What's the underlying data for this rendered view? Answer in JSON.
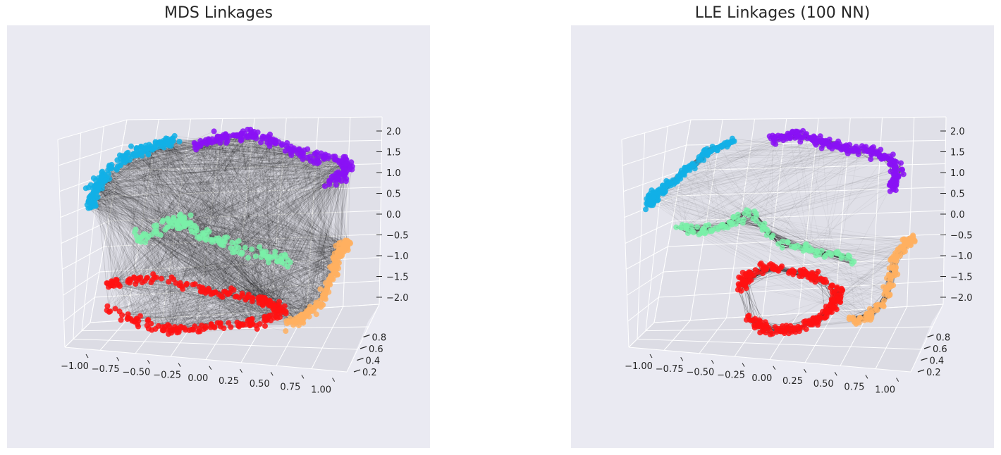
{
  "colors": {
    "background": "#eaeaf2",
    "pane_left": "#e4e4ec",
    "pane_right": "#e0e0e8",
    "pane_floor": "#dcdce4",
    "grid": "#ffffff",
    "link": "#000000",
    "red": "#ff1212",
    "orange": "#ffb060",
    "green": "#7af0a8",
    "blue": "#12b0e6",
    "purple": "#8a12f5"
  },
  "chart_data": [
    {
      "type": "scatter",
      "projection": "3d",
      "title": "MDS Linkages",
      "grid": true,
      "link_style": "dense",
      "xlim": [
        -1.0,
        1.0
      ],
      "ylim": [
        0.2,
        0.8
      ],
      "zlim": [
        -2.0,
        2.0
      ],
      "x_ticks": [
        "−1.00",
        "−0.75",
        "−0.50",
        "−0.25",
        "0.00",
        "0.25",
        "0.50",
        "0.75",
        "1.00"
      ],
      "y_ticks": [
        "0.2",
        "0.4",
        "0.6",
        "0.8"
      ],
      "z_ticks": [
        "−2.0",
        "−1.5",
        "−1.0",
        "−0.5",
        "0.0",
        "0.5",
        "1.0",
        "1.5",
        "2.0"
      ],
      "clusters": [
        {
          "color": "red",
          "points": 260
        },
        {
          "color": "orange",
          "points": 160
        },
        {
          "color": "green",
          "points": 140
        },
        {
          "color": "blue",
          "points": 180
        },
        {
          "color": "purple",
          "points": 220
        }
      ]
    },
    {
      "type": "scatter",
      "projection": "3d",
      "title": "LLE Linkages (100 NN)",
      "grid": true,
      "link_style": "nearest-neighbour",
      "xlim": [
        -1.0,
        1.0
      ],
      "ylim": [
        0.2,
        0.8
      ],
      "zlim": [
        -2.0,
        2.0
      ],
      "x_ticks": [
        "−1.00",
        "−0.75",
        "−0.50",
        "−0.25",
        "0.00",
        "0.25",
        "0.50",
        "0.75",
        "1.00"
      ],
      "y_ticks": [
        "0.2",
        "0.4",
        "0.6",
        "0.8"
      ],
      "z_ticks": [
        "−2.0",
        "−1.5",
        "−1.0",
        "−0.5",
        "0.0",
        "0.5",
        "1.0",
        "1.5",
        "2.0"
      ],
      "clusters": [
        {
          "color": "red",
          "points": 240
        },
        {
          "color": "orange",
          "points": 150
        },
        {
          "color": "green",
          "points": 120
        },
        {
          "color": "blue",
          "points": 170
        },
        {
          "color": "purple",
          "points": 210
        }
      ]
    }
  ]
}
